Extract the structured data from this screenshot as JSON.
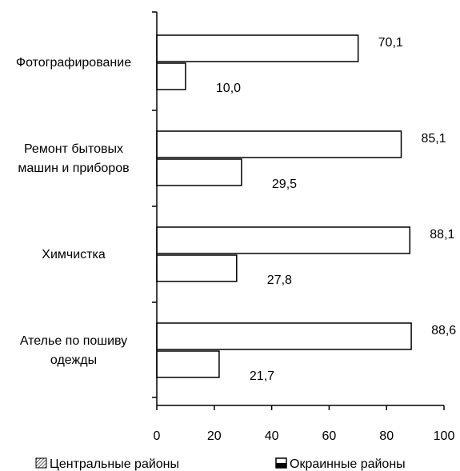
{
  "chart_data": {
    "type": "bar",
    "orientation": "horizontal",
    "title": "",
    "xlabel": "",
    "ylabel": "",
    "xlim": [
      0,
      100
    ],
    "x_ticks": [
      "0",
      "20",
      "40",
      "60",
      "80",
      "100"
    ],
    "grid": false,
    "legend_position": "bottom",
    "categories": [
      [
        "Фотографирование"
      ],
      [
        "Ремонт бытовых",
        "машин и приборов"
      ],
      [
        "Химчистка"
      ],
      [
        "Ателье по пошиву",
        "одежды"
      ]
    ],
    "series": [
      {
        "name": "Центральные районы",
        "values": [
          70.1,
          85.1,
          88.1,
          88.6
        ],
        "labels": [
          "70,1",
          "85,1",
          "88,1",
          "88,6"
        ],
        "fill": "#ffffff",
        "legend_icon": "hatched-square-icon"
      },
      {
        "name": "Окраинные районы",
        "values": [
          10.0,
          29.5,
          27.8,
          21.7
        ],
        "labels": [
          "10,0",
          "29,5",
          "27,8",
          "21,7"
        ],
        "fill": "#ffffff",
        "legend_icon": "half-filled-square-icon"
      }
    ]
  }
}
